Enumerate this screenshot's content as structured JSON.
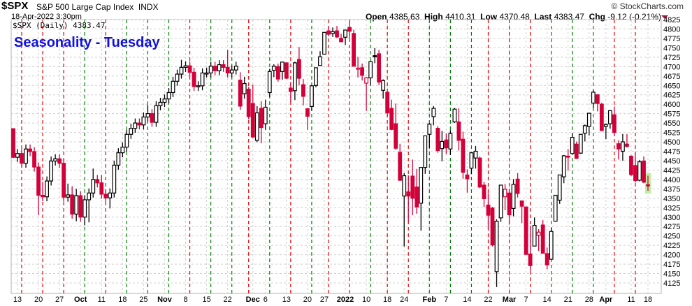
{
  "header": {
    "symbol": "$SPX",
    "name": "S&P 500 Large Cap Index",
    "exchange": "INDX",
    "datetime": "18-Apr-2022 3:30pm",
    "brand": "© StockCharts.com",
    "open_label": "Open",
    "open": "4385.63",
    "high_label": "High",
    "high": "4410.31",
    "low_label": "Low",
    "low": "4370.48",
    "last_label": "Last",
    "last": "4383.47",
    "chg_label": "Chg",
    "chg": "-9.12 (-0.21%)"
  },
  "legend": "$SPX (Daily) 4383.47",
  "chart_data": {
    "type": "candlestick",
    "title": "Seasonality - Tuesday",
    "ylim": [
      4125,
      4825
    ],
    "yticks": [
      4125,
      4150,
      4175,
      4200,
      4225,
      4250,
      4275,
      4300,
      4325,
      4350,
      4375,
      4400,
      4425,
      4450,
      4475,
      4500,
      4525,
      4550,
      4575,
      4600,
      4625,
      4650,
      4675,
      4700,
      4725,
      4750,
      4775,
      4800,
      4825
    ],
    "grid": true,
    "colors": {
      "up": "#000000",
      "down": "#d4003a",
      "tuesday_up": "#008000",
      "tuesday_down": "#e00000",
      "highlight": "#b8f0a0",
      "grid": "#d0d0d0"
    },
    "xticks": [
      {
        "date": "2021-09-13",
        "text": "13"
      },
      {
        "date": "2021-09-20",
        "text": "20"
      },
      {
        "date": "2021-09-27",
        "text": "27"
      },
      {
        "date": "2021-10-04",
        "text": "Oct",
        "bold": true
      },
      {
        "date": "2021-10-11",
        "text": "11"
      },
      {
        "date": "2021-10-18",
        "text": "18"
      },
      {
        "date": "2021-10-25",
        "text": "25"
      },
      {
        "date": "2021-11-01",
        "text": "Nov",
        "bold": true
      },
      {
        "date": "2021-11-08",
        "text": "8"
      },
      {
        "date": "2021-11-15",
        "text": "15"
      },
      {
        "date": "2021-11-22",
        "text": "22"
      },
      {
        "date": "2021-12-01",
        "text": "Dec",
        "bold": true
      },
      {
        "date": "2021-12-06",
        "text": "6"
      },
      {
        "date": "2021-12-13",
        "text": "13"
      },
      {
        "date": "2021-12-20",
        "text": "20"
      },
      {
        "date": "2021-12-27",
        "text": "27"
      },
      {
        "date": "2022-01-03",
        "text": "2022",
        "bold": true
      },
      {
        "date": "2022-01-10",
        "text": "10"
      },
      {
        "date": "2022-01-18",
        "text": "18"
      },
      {
        "date": "2022-01-24",
        "text": "24"
      },
      {
        "date": "2022-02-01",
        "text": "Feb",
        "bold": true
      },
      {
        "date": "2022-02-07",
        "text": "7"
      },
      {
        "date": "2022-02-14",
        "text": "14"
      },
      {
        "date": "2022-02-22",
        "text": "22"
      },
      {
        "date": "2022-03-01",
        "text": "Mar",
        "bold": true
      },
      {
        "date": "2022-03-07",
        "text": "7"
      },
      {
        "date": "2022-03-14",
        "text": "14"
      },
      {
        "date": "2022-03-21",
        "text": "21"
      },
      {
        "date": "2022-03-28",
        "text": "28"
      },
      {
        "date": "2022-04-01",
        "text": "Apr",
        "bold": true
      },
      {
        "date": "2022-04-11",
        "text": "11"
      },
      {
        "date": "2022-04-18",
        "text": "18"
      }
    ],
    "dates": [
      "2021-09-10",
      "2021-09-13",
      "2021-09-14",
      "2021-09-15",
      "2021-09-16",
      "2021-09-17",
      "2021-09-20",
      "2021-09-21",
      "2021-09-22",
      "2021-09-23",
      "2021-09-24",
      "2021-09-27",
      "2021-09-28",
      "2021-09-29",
      "2021-09-30",
      "2021-10-01",
      "2021-10-04",
      "2021-10-05",
      "2021-10-06",
      "2021-10-07",
      "2021-10-08",
      "2021-10-11",
      "2021-10-12",
      "2021-10-13",
      "2021-10-14",
      "2021-10-15",
      "2021-10-18",
      "2021-10-19",
      "2021-10-20",
      "2021-10-21",
      "2021-10-22",
      "2021-10-25",
      "2021-10-26",
      "2021-10-27",
      "2021-10-28",
      "2021-10-29",
      "2021-11-01",
      "2021-11-02",
      "2021-11-03",
      "2021-11-04",
      "2021-11-05",
      "2021-11-08",
      "2021-11-09",
      "2021-11-10",
      "2021-11-11",
      "2021-11-12",
      "2021-11-15",
      "2021-11-16",
      "2021-11-17",
      "2021-11-18",
      "2021-11-19",
      "2021-11-22",
      "2021-11-23",
      "2021-11-24",
      "2021-11-26",
      "2021-11-29",
      "2021-11-30",
      "2021-12-01",
      "2021-12-02",
      "2021-12-03",
      "2021-12-06",
      "2021-12-07",
      "2021-12-08",
      "2021-12-09",
      "2021-12-10",
      "2021-12-13",
      "2021-12-14",
      "2021-12-15",
      "2021-12-16",
      "2021-12-17",
      "2021-12-20",
      "2021-12-21",
      "2021-12-22",
      "2021-12-23",
      "2021-12-27",
      "2021-12-28",
      "2021-12-29",
      "2021-12-30",
      "2021-12-31",
      "2022-01-03",
      "2022-01-04",
      "2022-01-05",
      "2022-01-06",
      "2022-01-07",
      "2022-01-10",
      "2022-01-11",
      "2022-01-12",
      "2022-01-13",
      "2022-01-14",
      "2022-01-18",
      "2022-01-19",
      "2022-01-20",
      "2022-01-21",
      "2022-01-24",
      "2022-01-25",
      "2022-01-26",
      "2022-01-27",
      "2022-01-28",
      "2022-01-31",
      "2022-02-01",
      "2022-02-02",
      "2022-02-03",
      "2022-02-04",
      "2022-02-07",
      "2022-02-08",
      "2022-02-09",
      "2022-02-10",
      "2022-02-11",
      "2022-02-14",
      "2022-02-15",
      "2022-02-16",
      "2022-02-17",
      "2022-02-18",
      "2022-02-22",
      "2022-02-23",
      "2022-02-24",
      "2022-02-25",
      "2022-02-28",
      "2022-03-01",
      "2022-03-02",
      "2022-03-03",
      "2022-03-04",
      "2022-03-07",
      "2022-03-08",
      "2022-03-09",
      "2022-03-10",
      "2022-03-11",
      "2022-03-14",
      "2022-03-15",
      "2022-03-16",
      "2022-03-17",
      "2022-03-18",
      "2022-03-21",
      "2022-03-22",
      "2022-03-23",
      "2022-03-24",
      "2022-03-25",
      "2022-03-28",
      "2022-03-29",
      "2022-03-30",
      "2022-03-31",
      "2022-04-01",
      "2022-04-04",
      "2022-04-05",
      "2022-04-06",
      "2022-04-07",
      "2022-04-08",
      "2022-04-11",
      "2022-04-12",
      "2022-04-13",
      "2022-04-14",
      "2022-04-18"
    ],
    "ohlc": [
      [
        4535,
        4536,
        4457,
        4459
      ],
      [
        4459,
        4481,
        4447,
        4469
      ],
      [
        4469,
        4481,
        4431,
        4443
      ],
      [
        4443,
        4493,
        4431,
        4481
      ],
      [
        4481,
        4493,
        4462,
        4474
      ],
      [
        4474,
        4486,
        4421,
        4433
      ],
      [
        4433,
        4445,
        4305,
        4358
      ],
      [
        4358,
        4394,
        4342,
        4354
      ],
      [
        4354,
        4408,
        4342,
        4396
      ],
      [
        4396,
        4461,
        4384,
        4449
      ],
      [
        4449,
        4467,
        4437,
        4455
      ],
      [
        4455,
        4467,
        4431,
        4443
      ],
      [
        4443,
        4455,
        4341,
        4353
      ],
      [
        4353,
        4389,
        4341,
        4359
      ],
      [
        4359,
        4382,
        4296,
        4308
      ],
      [
        4308,
        4375,
        4289,
        4357
      ],
      [
        4357,
        4369,
        4288,
        4300
      ],
      [
        4300,
        4358,
        4278,
        4346
      ],
      [
        4346,
        4376,
        4286,
        4364
      ],
      [
        4364,
        4429,
        4352,
        4400
      ],
      [
        4400,
        4412,
        4379,
        4391
      ],
      [
        4391,
        4412,
        4349,
        4361
      ],
      [
        4361,
        4374,
        4339,
        4351
      ],
      [
        4351,
        4376,
        4323,
        4364
      ],
      [
        4364,
        4450,
        4352,
        4438
      ],
      [
        4438,
        4483,
        4426,
        4471
      ],
      [
        4471,
        4498,
        4459,
        4486
      ],
      [
        4486,
        4532,
        4474,
        4520
      ],
      [
        4520,
        4548,
        4508,
        4536
      ],
      [
        4536,
        4562,
        4524,
        4550
      ],
      [
        4550,
        4562,
        4533,
        4545
      ],
      [
        4545,
        4578,
        4533,
        4566
      ],
      [
        4566,
        4598,
        4554,
        4575
      ],
      [
        4575,
        4587,
        4540,
        4552
      ],
      [
        4552,
        4608,
        4540,
        4596
      ],
      [
        4596,
        4617,
        4584,
        4605
      ],
      [
        4605,
        4626,
        4593,
        4614
      ],
      [
        4614,
        4643,
        4602,
        4631
      ],
      [
        4631,
        4673,
        4619,
        4661
      ],
      [
        4661,
        4692,
        4649,
        4680
      ],
      [
        4680,
        4718,
        4668,
        4698
      ],
      [
        4698,
        4714,
        4686,
        4702
      ],
      [
        4702,
        4714,
        4673,
        4685
      ],
      [
        4685,
        4697,
        4635,
        4647
      ],
      [
        4647,
        4661,
        4635,
        4649
      ],
      [
        4649,
        4695,
        4637,
        4683
      ],
      [
        4683,
        4697,
        4671,
        4683
      ],
      [
        4683,
        4713,
        4671,
        4701
      ],
      [
        4701,
        4713,
        4677,
        4689
      ],
      [
        4689,
        4717,
        4677,
        4705
      ],
      [
        4705,
        4717,
        4686,
        4698
      ],
      [
        4698,
        4744,
        4671,
        4683
      ],
      [
        4683,
        4703,
        4671,
        4691
      ],
      [
        4691,
        4713,
        4679,
        4701
      ],
      [
        4664,
        4685,
        4585,
        4595
      ],
      [
        4628,
        4673,
        4615,
        4655
      ],
      [
        4640,
        4646,
        4560,
        4567
      ],
      [
        4602,
        4652,
        4510,
        4513
      ],
      [
        4504,
        4595,
        4499,
        4577
      ],
      [
        4589,
        4608,
        4496,
        4538
      ],
      [
        4548,
        4612,
        4532,
        4592
      ],
      [
        4631,
        4694,
        4619,
        4687
      ],
      [
        4690,
        4706,
        4672,
        4701
      ],
      [
        4700,
        4708,
        4660,
        4667
      ],
      [
        4687,
        4713,
        4665,
        4712
      ],
      [
        4710,
        4711,
        4667,
        4669
      ],
      [
        4643,
        4659,
        4606,
        4634
      ],
      [
        4636,
        4713,
        4611,
        4710
      ],
      [
        4719,
        4752,
        4650,
        4669
      ],
      [
        4652,
        4667,
        4597,
        4621
      ],
      [
        4588,
        4588,
        4532,
        4568
      ],
      [
        4594,
        4651,
        4583,
        4649
      ],
      [
        4650,
        4698,
        4645,
        4697
      ],
      [
        4703,
        4741,
        4703,
        4726
      ],
      [
        4733,
        4791,
        4733,
        4791
      ],
      [
        4795,
        4807,
        4781,
        4786
      ],
      [
        4788,
        4804,
        4779,
        4793
      ],
      [
        4795,
        4808,
        4775,
        4779
      ],
      [
        4775,
        4787,
        4765,
        4766
      ],
      [
        4778,
        4797,
        4758,
        4797
      ],
      [
        4804,
        4819,
        4775,
        4794
      ],
      [
        4788,
        4798,
        4700,
        4701
      ],
      [
        4694,
        4726,
        4671,
        4696
      ],
      [
        4697,
        4708,
        4663,
        4677
      ],
      [
        4656,
        4673,
        4582,
        4670
      ],
      [
        4670,
        4715,
        4650,
        4713
      ],
      [
        4729,
        4749,
        4709,
        4726
      ],
      [
        4734,
        4744,
        4651,
        4659
      ],
      [
        4637,
        4666,
        4615,
        4663
      ],
      [
        4632,
        4632,
        4568,
        4577
      ],
      [
        4589,
        4612,
        4531,
        4533
      ],
      [
        4548,
        4602,
        4479,
        4483
      ],
      [
        4472,
        4495,
        4396,
        4398
      ],
      [
        4356,
        4417,
        4222,
        4410
      ],
      [
        4367,
        4411,
        4287,
        4356
      ],
      [
        4409,
        4453,
        4305,
        4350
      ],
      [
        4380,
        4428,
        4309,
        4327
      ],
      [
        4337,
        4432,
        4264,
        4432
      ],
      [
        4432,
        4516,
        4415,
        4516
      ],
      [
        4520,
        4550,
        4484,
        4547
      ],
      [
        4567,
        4595,
        4544,
        4589
      ],
      [
        4536,
        4542,
        4471,
        4477
      ],
      [
        4482,
        4529,
        4448,
        4501
      ],
      [
        4505,
        4522,
        4468,
        4484
      ],
      [
        4481,
        4531,
        4465,
        4522
      ],
      [
        4553,
        4590,
        4550,
        4587
      ],
      [
        4553,
        4589,
        4477,
        4504
      ],
      [
        4507,
        4527,
        4402,
        4419
      ],
      [
        4412,
        4427,
        4365,
        4402
      ],
      [
        4430,
        4472,
        4414,
        4471
      ],
      [
        4457,
        4489,
        4429,
        4475
      ],
      [
        4457,
        4461,
        4377,
        4380
      ],
      [
        4385,
        4394,
        4327,
        4349
      ],
      [
        4332,
        4363,
        4268,
        4305
      ],
      [
        4324,
        4327,
        4222,
        4226
      ],
      [
        4155,
        4294,
        4114,
        4289
      ],
      [
        4298,
        4385,
        4287,
        4385
      ],
      [
        4354,
        4388,
        4318,
        4374
      ],
      [
        4364,
        4375,
        4280,
        4306
      ],
      [
        4323,
        4401,
        4302,
        4387
      ],
      [
        4401,
        4417,
        4352,
        4363
      ],
      [
        4343,
        4343,
        4284,
        4329
      ],
      [
        4327,
        4327,
        4199,
        4201
      ],
      [
        4202,
        4277,
        4157,
        4171
      ],
      [
        4223,
        4299,
        4223,
        4278
      ],
      [
        4252,
        4268,
        4210,
        4260
      ],
      [
        4279,
        4292,
        4203,
        4204
      ],
      [
        4203,
        4219,
        4161,
        4173
      ],
      [
        4188,
        4271,
        4187,
        4262
      ],
      [
        4289,
        4358,
        4288,
        4358
      ],
      [
        4345,
        4412,
        4335,
        4412
      ],
      [
        4407,
        4465,
        4390,
        4463
      ],
      [
        4462,
        4481,
        4424,
        4461
      ],
      [
        4469,
        4523,
        4470,
        4512
      ],
      [
        4494,
        4501,
        4455,
        4456
      ],
      [
        4470,
        4521,
        4468,
        4520
      ],
      [
        4523,
        4546,
        4501,
        4543
      ],
      [
        4541,
        4576,
        4517,
        4576
      ],
      [
        4603,
        4637,
        4589,
        4632
      ],
      [
        4625,
        4627,
        4581,
        4602
      ],
      [
        4600,
        4604,
        4530,
        4530
      ],
      [
        4541,
        4549,
        4507,
        4546
      ],
      [
        4548,
        4584,
        4535,
        4583
      ],
      [
        4572,
        4594,
        4515,
        4525
      ],
      [
        4495,
        4504,
        4453,
        4481
      ],
      [
        4475,
        4521,
        4450,
        4500
      ],
      [
        4494,
        4521,
        4485,
        4488
      ],
      [
        4462,
        4464,
        4409,
        4413
      ],
      [
        4437,
        4471,
        4392,
        4397
      ],
      [
        4398,
        4452,
        4395,
        4447
      ],
      [
        4449,
        4461,
        4390,
        4393
      ],
      [
        4386,
        4410,
        4370,
        4383
      ]
    ]
  }
}
